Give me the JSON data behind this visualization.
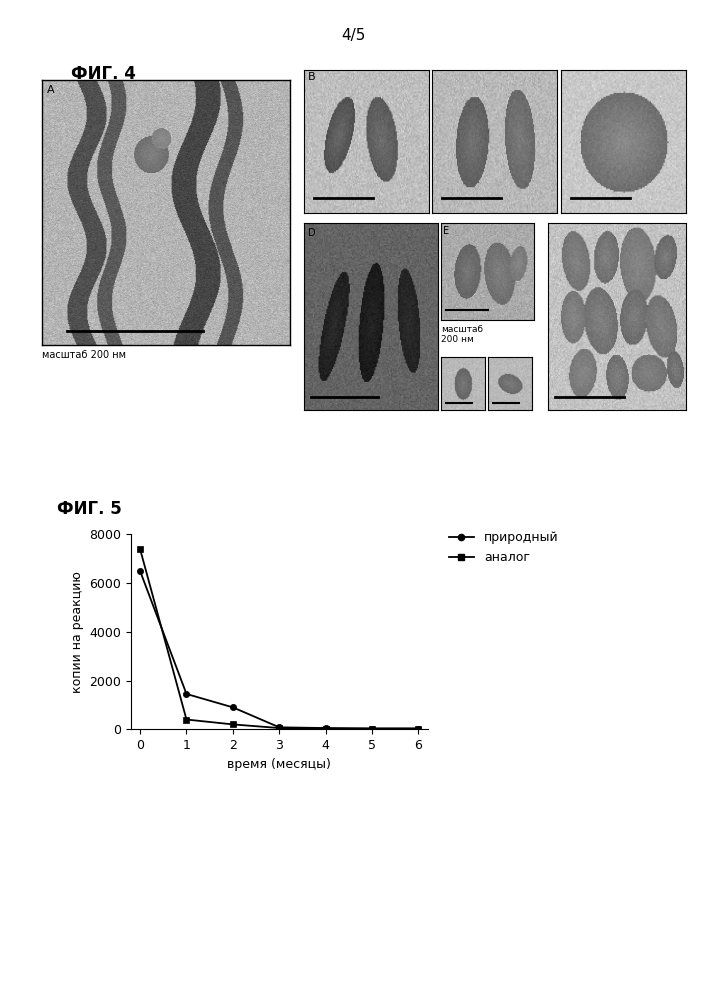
{
  "page_label": "4/5",
  "fig4_label": "ФИГ. 4",
  "fig5_label": "ФИГ. 5",
  "fig4_sublabel_A": "А",
  "fig4_sublabel_B": "В",
  "fig4_scale_A": "масштаб 200 нм",
  "fig4_scale_B": "масштаб\n200 нм",
  "line1_label": "природный",
  "line2_label": "аналог",
  "xlabel": "время (месяцы)",
  "ylabel": "копии на реакцию",
  "x_natural": [
    0,
    1,
    2,
    3,
    4,
    5,
    6
  ],
  "y_natural": [
    6500,
    1450,
    900,
    80,
    50,
    30,
    30
  ],
  "x_analog": [
    0,
    1,
    2,
    3,
    4,
    5,
    6
  ],
  "y_analog": [
    7400,
    400,
    200,
    50,
    30,
    30,
    30
  ],
  "ylim": [
    0,
    8000
  ],
  "xlim": [
    0,
    6
  ],
  "yticks": [
    0,
    2000,
    4000,
    6000,
    8000
  ],
  "xticks": [
    0,
    1,
    2,
    3,
    4,
    5,
    6
  ],
  "bg_color": "#ffffff",
  "line_color": "#000000",
  "marker_circle": "o",
  "marker_square": "s"
}
